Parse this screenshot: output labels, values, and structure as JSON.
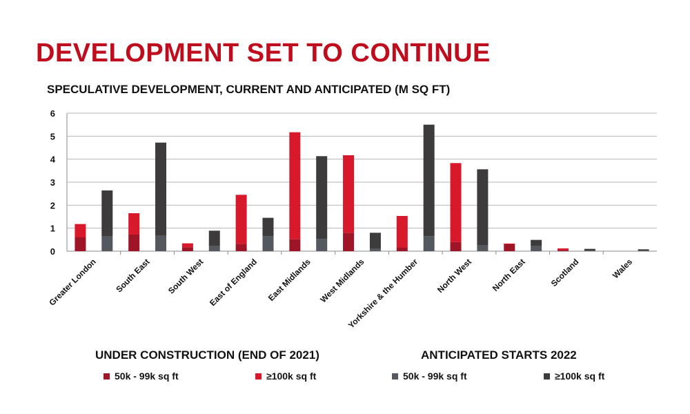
{
  "headline": "DEVELOPMENT SET TO CONTINUE",
  "colors": {
    "headline": "#c00d1e",
    "uc_50k": "#9e1527",
    "uc_100k": "#d7192b",
    "as_50k": "#54585f",
    "as_100k": "#3d3b3c",
    "grid": "#b5b5b5"
  },
  "legend": {
    "group_under_construction": "UNDER CONSTRUCTION (END OF 2021)",
    "group_anticipated": "ANTICIPATED STARTS 2022",
    "uc_50k_label": "50k - 99k sq ft",
    "uc_100k_label": "≥100k sq ft",
    "as_50k_label": "50k - 99k sq ft",
    "as_100k_label": "≥100k sq ft"
  },
  "chart_data": {
    "type": "bar",
    "stacked": true,
    "grouped": true,
    "title": "SPECULATIVE DEVELOPMENT, CURRENT AND ANTICIPATED (M SQ FT)",
    "xlabel": "",
    "ylabel": "",
    "ylim": [
      0,
      6
    ],
    "yticks": [
      0,
      1,
      2,
      3,
      4,
      5,
      6
    ],
    "grid": true,
    "legend_position": "bottom",
    "categories": [
      "Greater London",
      "South East",
      "South West",
      "East of England",
      "East Midlands",
      "West Midlands",
      "Yorkshire & the Humber",
      "North West",
      "North East",
      "Scotland",
      "Wales"
    ],
    "series": [
      {
        "name": "50k - 99k sq ft",
        "group": "UNDER CONSTRUCTION (END OF 2021)",
        "color": "#9e1527",
        "values": [
          0.6,
          0.72,
          0.17,
          0.32,
          0.52,
          0.8,
          0.15,
          0.4,
          0.3,
          0.05,
          0.0
        ]
      },
      {
        "name": "≥100k sq ft",
        "group": "UNDER CONSTRUCTION (END OF 2021)",
        "color": "#d7192b",
        "values": [
          0.58,
          0.93,
          0.17,
          2.13,
          4.65,
          3.37,
          1.38,
          3.43,
          0.03,
          0.07,
          0.0
        ]
      },
      {
        "name": "50k - 99k sq ft",
        "group": "ANTICIPATED STARTS 2022",
        "color": "#54585f",
        "values": [
          0.66,
          0.67,
          0.22,
          0.65,
          0.53,
          0.1,
          0.65,
          0.25,
          0.22,
          0.02,
          0.02
        ]
      },
      {
        "name": "≥100k sq ft",
        "group": "ANTICIPATED STARTS 2022",
        "color": "#3d3b3c",
        "values": [
          1.98,
          4.05,
          0.67,
          0.8,
          3.6,
          0.7,
          4.85,
          3.31,
          0.27,
          0.08,
          0.06
        ]
      }
    ]
  }
}
